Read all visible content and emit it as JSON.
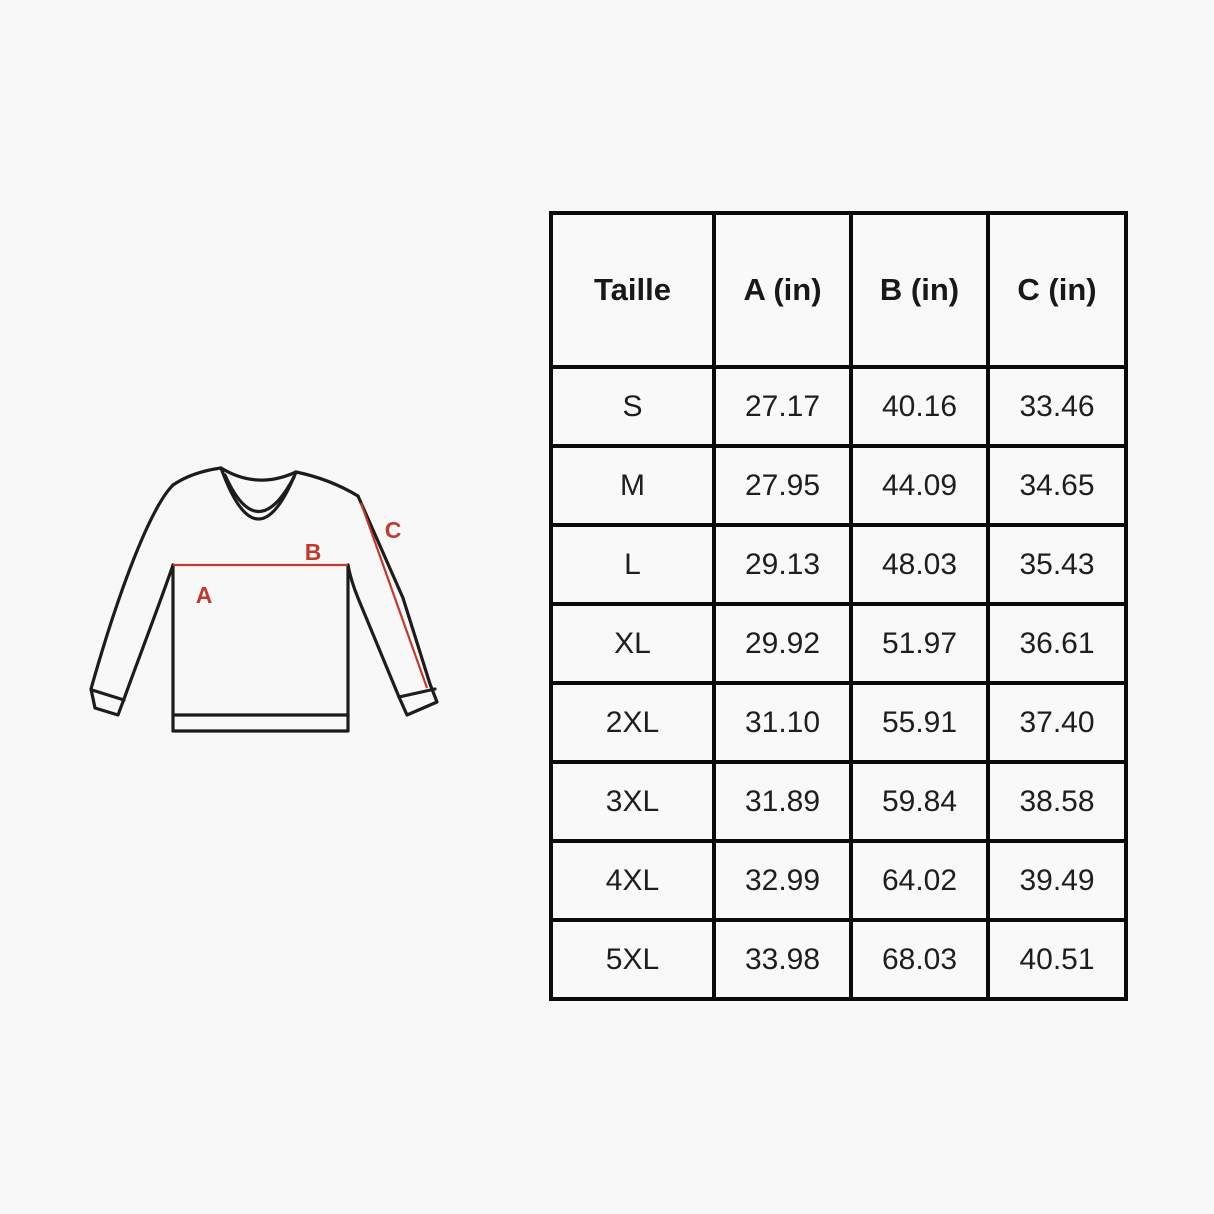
{
  "page": {
    "background_color": "#f8f8f8"
  },
  "diagram": {
    "description": "long-sleeve sweatshirt line drawing with measurement markers",
    "outline_color": "#1c1c1c",
    "accent_color": "#c23a2e",
    "labels": {
      "a": "A",
      "b": "B",
      "c": "C"
    }
  },
  "chart_data": {
    "type": "table",
    "columns": [
      "Taille",
      "A (in)",
      "B (in)",
      "C (in)"
    ],
    "rows": [
      [
        "S",
        "27.17",
        "40.16",
        "33.46"
      ],
      [
        "M",
        "27.95",
        "44.09",
        "34.65"
      ],
      [
        "L",
        "29.13",
        "48.03",
        "35.43"
      ],
      [
        "XL",
        "29.92",
        "51.97",
        "36.61"
      ],
      [
        "2XL",
        "31.10",
        "55.91",
        "37.40"
      ],
      [
        "3XL",
        "31.89",
        "59.84",
        "38.58"
      ],
      [
        "4XL",
        "32.99",
        "64.02",
        "39.49"
      ],
      [
        "5XL",
        "33.98",
        "68.03",
        "40.51"
      ]
    ]
  }
}
